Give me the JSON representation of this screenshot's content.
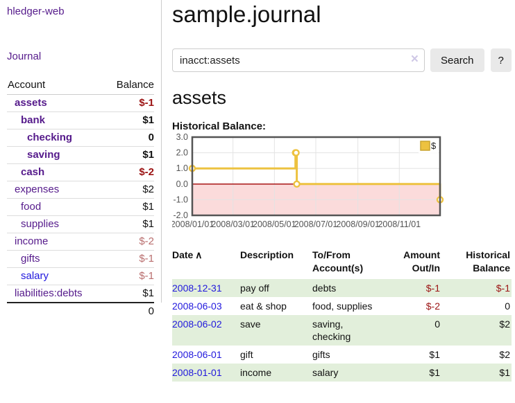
{
  "colors": {
    "link_purple": "#551a8b",
    "link_blue": "#2017dd",
    "negative_strong": "#9b1212",
    "negative_faded": "#b96e6e",
    "stripe_green": "#e2efdb"
  },
  "sidebar": {
    "brand": "hledger-web",
    "journal_label": "Journal",
    "accounts_table": {
      "account_header": "Account",
      "balance_header": "Balance",
      "rows": [
        {
          "name": "assets",
          "indent": 1,
          "balance": "$-1",
          "bold": true,
          "balance_color": "negative"
        },
        {
          "name": "bank",
          "indent": 2,
          "balance": "$1",
          "bold": true,
          "balance_color": "normal"
        },
        {
          "name": "checking",
          "indent": 3,
          "balance": "0",
          "bold": true,
          "balance_color": "normal"
        },
        {
          "name": "saving",
          "indent": 3,
          "balance": "$1",
          "bold": true,
          "balance_color": "normal"
        },
        {
          "name": "cash",
          "indent": 2,
          "balance": "$-2",
          "bold": true,
          "balance_color": "negative"
        },
        {
          "name": "expenses",
          "indent": 1,
          "balance": "$2",
          "bold": false,
          "balance_color": "normal"
        },
        {
          "name": "food",
          "indent": 2,
          "balance": "$1",
          "bold": false,
          "balance_color": "normal"
        },
        {
          "name": "supplies",
          "indent": 2,
          "balance": "$1",
          "bold": false,
          "balance_color": "normal"
        },
        {
          "name": "income",
          "indent": 1,
          "balance": "$-2",
          "bold": false,
          "balance_color": "faded"
        },
        {
          "name": "gifts",
          "indent": 2,
          "balance": "$-1",
          "bold": false,
          "balance_color": "faded"
        },
        {
          "name": "salary",
          "indent": 2,
          "balance": "$-1",
          "bold": false,
          "balance_color": "faded",
          "link_color": "blue"
        },
        {
          "name": "liabilities:debts",
          "indent": 1,
          "balance": "$1",
          "bold": false,
          "balance_color": "normal"
        }
      ],
      "total": "0"
    }
  },
  "main": {
    "title": "sample.journal",
    "search": {
      "value": "inacct:assets",
      "clear_icon": "×",
      "button_label": "Search",
      "help_label": "?"
    },
    "account_heading": "assets"
  },
  "chart_data": {
    "type": "line",
    "style": "step",
    "title": "Historical Balance:",
    "series": [
      {
        "name": "$",
        "color": "#edc240",
        "points": [
          {
            "date": "2008-01-01",
            "value": 1
          },
          {
            "date": "2008-06-01",
            "value": 2
          },
          {
            "date": "2008-06-02",
            "value": 2
          },
          {
            "date": "2008-06-03",
            "value": 0
          },
          {
            "date": "2008-12-31",
            "value": -1
          }
        ]
      }
    ],
    "xrange": [
      "2008-01-01",
      "2008-12-31"
    ],
    "ylim": [
      -2,
      3
    ],
    "yticks": [
      3.0,
      2.0,
      1.0,
      0.0,
      -1.0,
      -2.0
    ],
    "xticks": [
      "2008/01/01",
      "2008/03/01",
      "2008/05/01",
      "2008/07/01",
      "2008/09/01",
      "2008/11/01"
    ],
    "grid": true,
    "negative_region_color": "#fbdbdb",
    "zero_line_color": "#a00000",
    "axis_text_color": "#545454",
    "legend": {
      "label": "$",
      "position": "top-right"
    }
  },
  "register_table": {
    "headers": [
      {
        "line1": "Date",
        "sort_icon": "∧",
        "align": "left"
      },
      {
        "line1": "Description",
        "align": "left"
      },
      {
        "line1": "To/From",
        "line2": "Account(s)",
        "align": "left"
      },
      {
        "line1": "Amount",
        "line2": "Out/In",
        "align": "right"
      },
      {
        "line1": "Historical",
        "line2": "Balance",
        "align": "right"
      }
    ],
    "rows": [
      {
        "date": "2008-12-31",
        "description": "pay off",
        "accounts": "debts",
        "amount": "$-1",
        "amount_neg": true,
        "balance": "$-1",
        "balance_neg": true
      },
      {
        "date": "2008-06-03",
        "description": "eat & shop",
        "accounts": "food, supplies",
        "amount": "$-2",
        "amount_neg": true,
        "balance": "0",
        "balance_neg": false
      },
      {
        "date": "2008-06-02",
        "description": "save",
        "accounts": "saving, checking",
        "amount": "0",
        "amount_neg": false,
        "balance": "$2",
        "balance_neg": false
      },
      {
        "date": "2008-06-01",
        "description": "gift",
        "accounts": "gifts",
        "amount": "$1",
        "amount_neg": false,
        "balance": "$2",
        "balance_neg": false
      },
      {
        "date": "2008-01-01",
        "description": "income",
        "accounts": "salary",
        "amount": "$1",
        "amount_neg": false,
        "balance": "$1",
        "balance_neg": false
      }
    ]
  }
}
